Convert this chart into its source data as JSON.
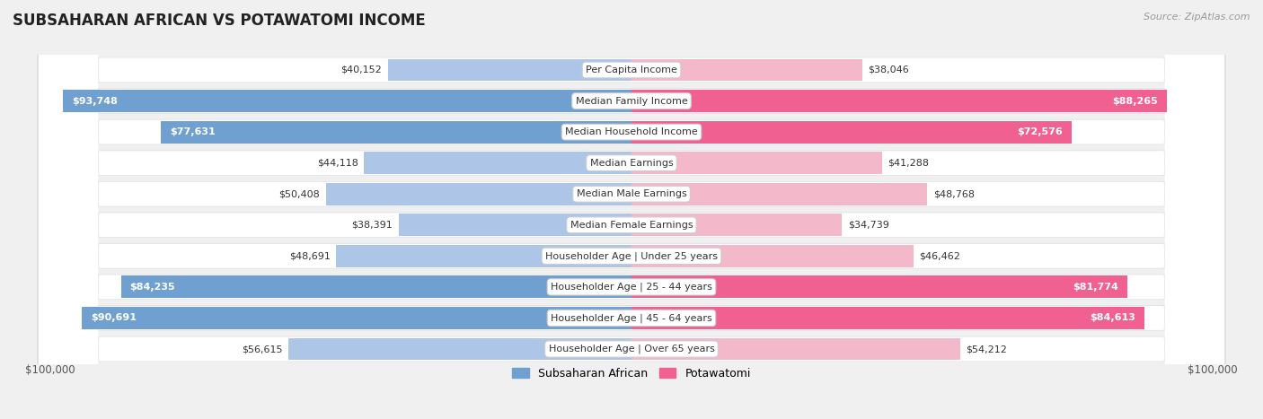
{
  "title": "SUBSAHARAN AFRICAN VS POTAWATOMI INCOME",
  "source": "Source: ZipAtlas.com",
  "categories": [
    "Per Capita Income",
    "Median Family Income",
    "Median Household Income",
    "Median Earnings",
    "Median Male Earnings",
    "Median Female Earnings",
    "Householder Age | Under 25 years",
    "Householder Age | 25 - 44 years",
    "Householder Age | 45 - 64 years",
    "Householder Age | Over 65 years"
  ],
  "left_values": [
    40152,
    93748,
    77631,
    44118,
    50408,
    38391,
    48691,
    84235,
    90691,
    56615
  ],
  "right_values": [
    38046,
    88265,
    72576,
    41288,
    48768,
    34739,
    46462,
    81774,
    84613,
    54212
  ],
  "left_labels": [
    "$40,152",
    "$93,748",
    "$77,631",
    "$44,118",
    "$50,408",
    "$38,391",
    "$48,691",
    "$84,235",
    "$90,691",
    "$56,615"
  ],
  "right_labels": [
    "$38,046",
    "$88,265",
    "$72,576",
    "$41,288",
    "$48,768",
    "$34,739",
    "$46,462",
    "$81,774",
    "$84,613",
    "$54,212"
  ],
  "left_color_light": "#adc6e8",
  "left_color_dark": "#6fa0d0",
  "right_color_light": "#f4b8cb",
  "right_color_dark": "#f06090",
  "max_value": 100000,
  "axis_label_left": "$100,000",
  "axis_label_right": "$100,000",
  "legend_left": "Subsaharan African",
  "legend_right": "Potawatomi",
  "background_color": "#f0f0f0",
  "row_bg": "#e8e8ec",
  "row_inner_bg": "#ffffff",
  "threshold_dark": 65000
}
